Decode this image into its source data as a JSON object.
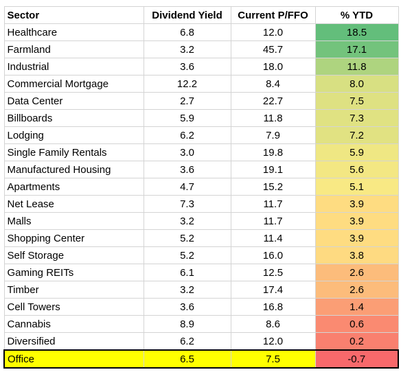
{
  "table": {
    "header": [
      "Sector",
      "Dividend Yield",
      "Current P/FFO",
      "% YTD"
    ],
    "rows": [
      [
        "Healthcare",
        "6.8",
        "12.0",
        "18.5"
      ],
      [
        "Farmland",
        "3.2",
        "45.7",
        "17.1"
      ],
      [
        "Industrial",
        "3.6",
        "18.0",
        "11.8"
      ],
      [
        "Commercial Mortgage",
        "12.2",
        "8.4",
        "8.0"
      ],
      [
        "Data Center",
        "2.7",
        "22.7",
        "7.5"
      ],
      [
        "Billboards",
        "5.9",
        "11.8",
        "7.3"
      ],
      [
        "Lodging",
        "6.2",
        "7.9",
        "7.2"
      ],
      [
        "Single Family Rentals",
        "3.0",
        "19.8",
        "5.9"
      ],
      [
        "Manufactured Housing",
        "3.6",
        "19.1",
        "5.6"
      ],
      [
        "Apartments",
        "4.7",
        "15.2",
        "5.1"
      ],
      [
        "Net Lease",
        "7.3",
        "11.7",
        "3.9"
      ],
      [
        "Malls",
        "3.2",
        "11.7",
        "3.9"
      ],
      [
        "Shopping Center",
        "5.2",
        "11.4",
        "3.9"
      ],
      [
        "Self Storage",
        "5.2",
        "16.0",
        "3.8"
      ],
      [
        "Gaming REITs",
        "6.1",
        "12.5",
        "2.6"
      ],
      [
        "Timber",
        "3.2",
        "17.4",
        "2.6"
      ],
      [
        "Cell Towers",
        "3.6",
        "16.8",
        "1.4"
      ],
      [
        "Cannabis",
        "8.9",
        "8.6",
        "0.6"
      ],
      [
        "Diversified",
        "6.2",
        "12.0",
        "0.2"
      ],
      [
        "Office",
        "6.5",
        "7.5",
        "-0.7"
      ]
    ],
    "highlight_row": 19
  }
}
